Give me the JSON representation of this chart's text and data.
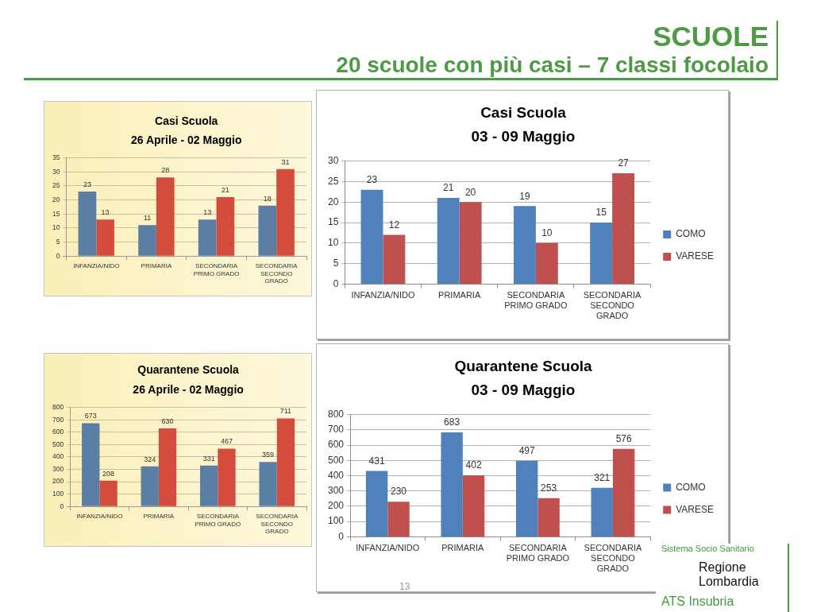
{
  "chart_data": [
    {
      "type": "other",
      "title": "SCUOLE",
      "subtitle": "20 scuole con più casi – 7 classi focolaio"
    },
    {
      "type": "bar",
      "title": "Casi Scuola",
      "subtitle": "26 Aprile - 02 Maggio",
      "categories": [
        "INFANZIA/NIDO",
        "PRIMARIA",
        "SECONDARIA PRIMO GRADO",
        "SECONDARIA SECONDO GRADO"
      ],
      "series": [
        {
          "color": "#5b7ea4",
          "values": [
            23,
            11,
            13,
            18
          ]
        },
        {
          "color": "#d44d3c",
          "values": [
            13,
            28,
            21,
            31
          ]
        }
      ],
      "ylim": [
        0,
        35
      ],
      "yticks": [
        0,
        5,
        10,
        15,
        20,
        25,
        30,
        35
      ],
      "grid": "y",
      "data_labels": true
    },
    {
      "type": "bar",
      "title": "Casi Scuola",
      "subtitle": "03 - 09 Maggio",
      "categories": [
        "INFANZIA/NIDO",
        "PRIMARIA",
        "SECONDARIA PRIMO GRADO",
        "SECONDARIA SECONDO GRADO"
      ],
      "series": [
        {
          "name": "COMO",
          "color": "#4f81bd",
          "values": [
            23,
            21,
            19,
            15
          ]
        },
        {
          "name": "VARESE",
          "color": "#c0504d",
          "values": [
            12,
            20,
            10,
            27
          ]
        }
      ],
      "ylim": [
        0,
        30
      ],
      "yticks": [
        0,
        5,
        10,
        15,
        20,
        25,
        30
      ],
      "grid": "y",
      "legend": "right",
      "data_labels": true
    },
    {
      "type": "bar",
      "title": "Quarantene Scuola",
      "subtitle": "26 Aprile - 02 Maggio",
      "categories": [
        "INFANZIA/NIDO",
        "PRIMARIA",
        "SECONDARIA PRIMO GRADO",
        "SECONDARIA SECONDO GRADO"
      ],
      "series": [
        {
          "color": "#5b7ea4",
          "values": [
            673,
            324,
            331,
            359
          ]
        },
        {
          "color": "#d44d3c",
          "values": [
            208,
            630,
            467,
            711
          ]
        }
      ],
      "ylim": [
        0,
        800
      ],
      "yticks": [
        0,
        100,
        200,
        300,
        400,
        500,
        600,
        700,
        800
      ],
      "grid": "y",
      "data_labels": true
    },
    {
      "type": "bar",
      "title": "Quarantene Scuola",
      "subtitle": "03 - 09 Maggio",
      "categories": [
        "INFANZIA/NIDO",
        "PRIMARIA",
        "SECONDARIA PRIMO GRADO",
        "SECONDARIA SECONDO GRADO"
      ],
      "series": [
        {
          "name": "COMO",
          "color": "#4f81bd",
          "values": [
            431,
            683,
            497,
            321
          ]
        },
        {
          "name": "VARESE",
          "color": "#c0504d",
          "values": [
            230,
            402,
            253,
            576
          ]
        }
      ],
      "ylim": [
        0,
        800
      ],
      "yticks": [
        0,
        100,
        200,
        300,
        400,
        500,
        600,
        700,
        800
      ],
      "grid": "y",
      "legend": "right",
      "data_labels": true
    },
    {
      "type": "other",
      "annotations": [
        "13",
        "Sistema Socio Sanitario",
        "Regione Lombardia",
        "ATS Insubria"
      ]
    }
  ]
}
